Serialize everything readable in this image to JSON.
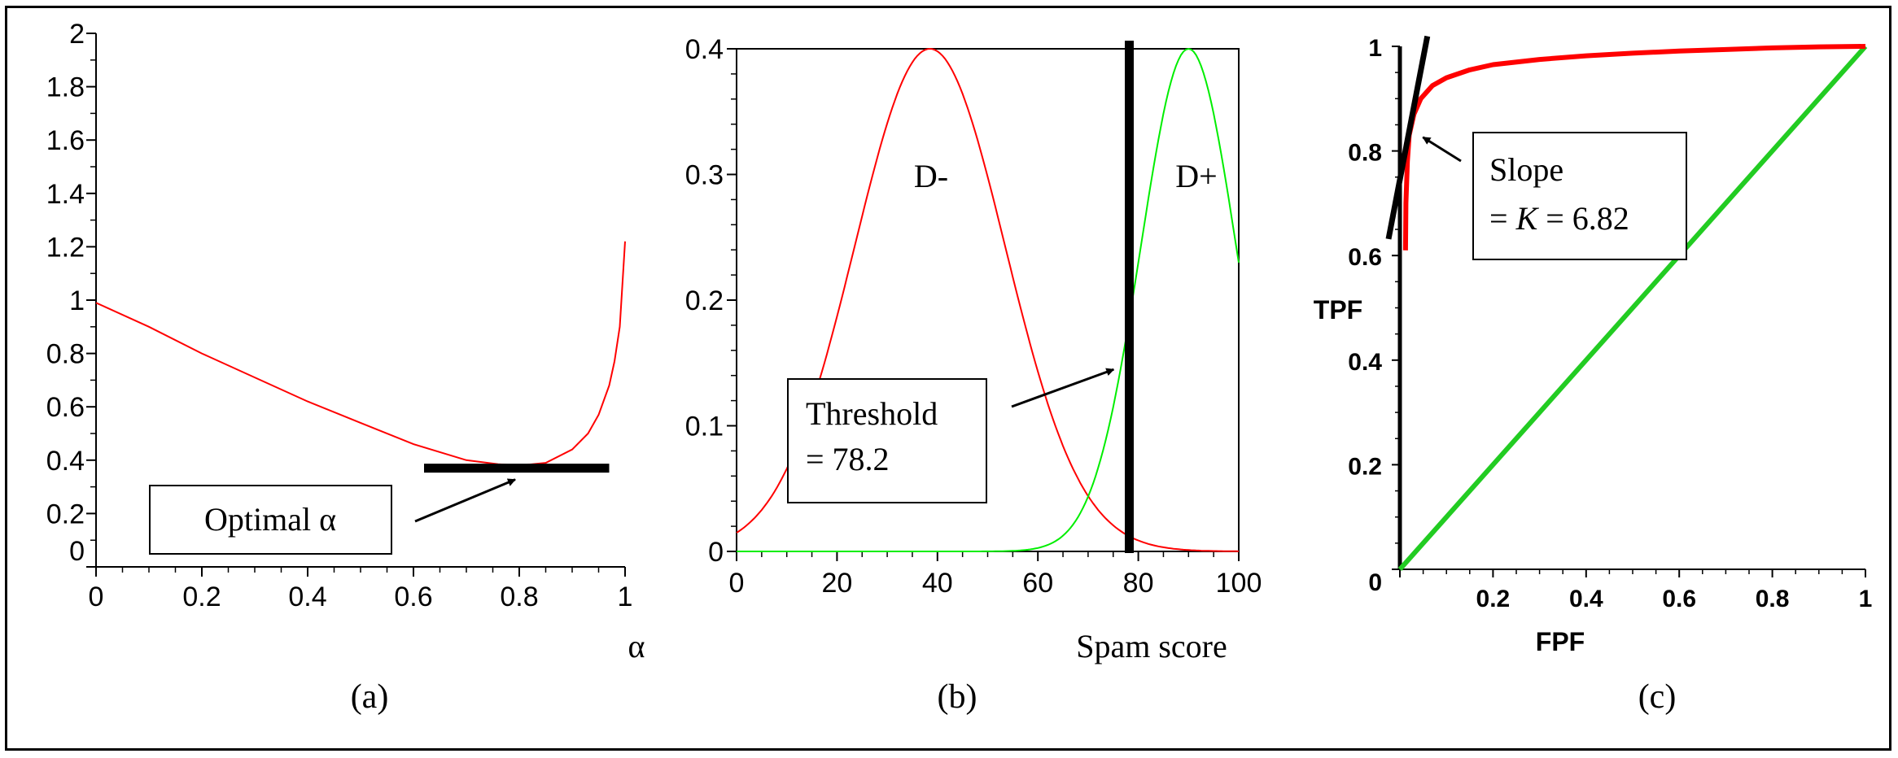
{
  "chart_data": [
    {
      "type": "line",
      "xlabel": "α",
      "ylabel": "",
      "xlim": [
        0,
        1
      ],
      "ylim": [
        0,
        2
      ],
      "xticks": [
        "0",
        "0.2",
        "0.4",
        "0.6",
        "0.8",
        "1"
      ],
      "yticks": [
        "0",
        "0.2",
        "0.4",
        "0.6",
        "0.8",
        "1",
        "1.2",
        "1.4",
        "1.6",
        "1.8",
        "2"
      ],
      "series": [
        {
          "color": "#ff0000",
          "x": [
            0,
            0.1,
            0.2,
            0.3,
            0.4,
            0.5,
            0.6,
            0.7,
            0.76,
            0.8,
            0.85,
            0.9,
            0.93,
            0.95,
            0.97,
            0.98,
            0.99,
            1.0
          ],
          "y": [
            0.99,
            0.9,
            0.8,
            0.71,
            0.62,
            0.54,
            0.46,
            0.4,
            0.385,
            0.38,
            0.39,
            0.44,
            0.5,
            0.57,
            0.68,
            0.77,
            0.9,
            1.22
          ]
        }
      ],
      "annotations": {
        "optimal_line": {
          "x": [
            0.62,
            0.97
          ],
          "y": 0.37
        },
        "box_label": "Optimal α",
        "arrow_target": {
          "x": 0.78,
          "y": 0.37
        }
      },
      "caption": "(a)"
    },
    {
      "type": "line",
      "xlabel": "Spam score",
      "ylabel": "",
      "xlim": [
        0,
        100
      ],
      "ylim": [
        0,
        0.4
      ],
      "xticks": [
        "0",
        "20",
        "40",
        "60",
        "80",
        "100"
      ],
      "yticks": [
        "0",
        "0.1",
        "0.2",
        "0.3",
        "0.4"
      ],
      "series": [
        {
          "name": "D-",
          "color": "#ff0000",
          "mean": 38.5,
          "sd": 15,
          "peak": 0.4,
          "x_range": [
            0,
            100
          ]
        },
        {
          "name": "D+",
          "color": "#00ee00",
          "mean": 90,
          "sd": 9.5,
          "peak": 0.4,
          "x_range": [
            0,
            100
          ]
        }
      ],
      "threshold": {
        "x": 78.2,
        "label_line1": "Threshold",
        "label_line2": "= 78.2",
        "arrow_target": {
          "x": 72.5,
          "y": 0.15
        }
      },
      "caption": "(b)"
    },
    {
      "type": "line",
      "xlabel": "FPF",
      "ylabel": "TPF",
      "xlim": [
        0,
        1
      ],
      "ylim": [
        0,
        1
      ],
      "xticks": [
        "0",
        "0.2",
        "0.4",
        "0.6",
        "0.8",
        "1"
      ],
      "yticks": [
        "0",
        "0.2",
        "0.4",
        "0.6",
        "0.8",
        "1"
      ],
      "series": [
        {
          "color": "#ff0000",
          "x": [
            0.012,
            0.013,
            0.016,
            0.02,
            0.03,
            0.045,
            0.07,
            0.1,
            0.15,
            0.2,
            0.3,
            0.4,
            0.5,
            0.6,
            0.7,
            0.8,
            0.9,
            1.0
          ],
          "y": [
            0.61,
            0.7,
            0.78,
            0.83,
            0.87,
            0.9,
            0.925,
            0.94,
            0.955,
            0.965,
            0.975,
            0.982,
            0.987,
            0.991,
            0.994,
            0.997,
            0.999,
            1.0
          ]
        },
        {
          "color": "#22cc22",
          "x": [
            0,
            1
          ],
          "y": [
            0,
            1
          ]
        }
      ],
      "tangent": {
        "x": [
          0.0,
          0.045
        ],
        "y": [
          0.7,
          1.01
        ]
      },
      "annotation": {
        "line1": "Slope",
        "line2_prefix": "= ",
        "line2_k": "K",
        "line2_suffix": " = 6.82",
        "arrow_target": {
          "x": 0.025,
          "y": 0.82
        }
      },
      "caption": "(c)"
    }
  ]
}
